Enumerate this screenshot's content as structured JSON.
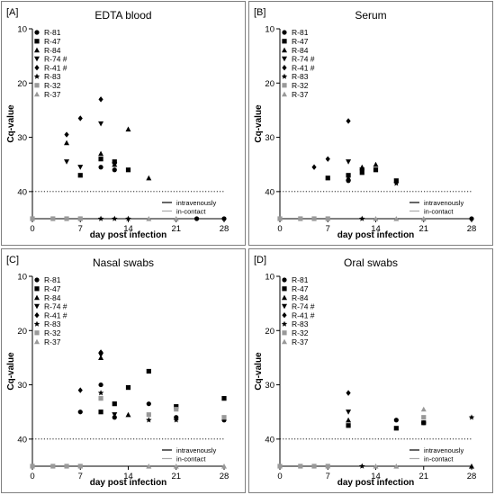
{
  "figure": {
    "x_ticks": [
      "0",
      "7",
      "14",
      "21",
      "28"
    ],
    "y_ticks": [
      "10",
      "20",
      "30",
      "40"
    ],
    "y_label": "Cq-value",
    "x_label": "day post infection",
    "threshold_ref": "dotted line at Cq 40",
    "legend_series": [
      {
        "name": "R-81",
        "marker": "circle",
        "color": "#000000"
      },
      {
        "name": "R-47",
        "marker": "square",
        "color": "#000000"
      },
      {
        "name": "R-84",
        "marker": "triangle-up",
        "color": "#000000"
      },
      {
        "name": "R-74 #",
        "marker": "triangle-down",
        "color": "#000000"
      },
      {
        "name": "R-41 #",
        "marker": "diamond",
        "color": "#000000"
      },
      {
        "name": "R-83",
        "marker": "star",
        "color": "#000000"
      },
      {
        "name": "R-32",
        "marker": "square",
        "color": "#999999"
      },
      {
        "name": "R-37",
        "marker": "triangle-up",
        "color": "#999999"
      }
    ],
    "route_legend": [
      {
        "label": "intravenously",
        "color": "#000000"
      },
      {
        "label": "in-contact",
        "color": "#aaaaaa"
      }
    ]
  },
  "chart_data": [
    {
      "type": "scatter",
      "panel_label": "[A]",
      "title": "EDTA blood",
      "xlabel": "day post infection",
      "ylabel": "Cq-value",
      "xlim": [
        0,
        28
      ],
      "ylim": [
        10,
        45
      ],
      "y_inverted": true,
      "threshold": 40,
      "negative_value": 45,
      "series": [
        {
          "name": "R-81",
          "points": [
            [
              10,
              35.5
            ],
            [
              12,
              36
            ],
            [
              24,
              45
            ],
            [
              28,
              45
            ]
          ]
        },
        {
          "name": "R-47",
          "points": [
            [
              7,
              37
            ],
            [
              10,
              34
            ],
            [
              12,
              34.5
            ],
            [
              14,
              36
            ]
          ]
        },
        {
          "name": "R-84",
          "points": [
            [
              5,
              31
            ],
            [
              10,
              33
            ],
            [
              12,
              35
            ],
            [
              14,
              28.5
            ],
            [
              17,
              37.5
            ]
          ]
        },
        {
          "name": "R-74 #",
          "points": [
            [
              5,
              34.5
            ],
            [
              7,
              35.5
            ],
            [
              10,
              27.5
            ],
            [
              12,
              35
            ]
          ]
        },
        {
          "name": "R-41 #",
          "points": [
            [
              5,
              29.5
            ],
            [
              7,
              26.5
            ],
            [
              10,
              23
            ]
          ]
        },
        {
          "name": "R-83",
          "points": [
            [
              10,
              45
            ],
            [
              12,
              45
            ],
            [
              14,
              45
            ]
          ]
        },
        {
          "name": "R-32",
          "points": [
            [
              0,
              45
            ],
            [
              3,
              45
            ],
            [
              5,
              45
            ],
            [
              7,
              45
            ]
          ]
        },
        {
          "name": "R-37",
          "points": [
            [
              17,
              45
            ],
            [
              21,
              45
            ]
          ]
        }
      ]
    },
    {
      "type": "scatter",
      "panel_label": "[B]",
      "title": "Serum",
      "xlabel": "day post infection",
      "ylabel": "Cq-value",
      "xlim": [
        0,
        28
      ],
      "ylim": [
        10,
        45
      ],
      "y_inverted": true,
      "threshold": 40,
      "negative_value": 45,
      "series": [
        {
          "name": "R-81",
          "points": [
            [
              10,
              38
            ],
            [
              12,
              36
            ],
            [
              28,
              45
            ]
          ]
        },
        {
          "name": "R-47",
          "points": [
            [
              7,
              37.5
            ],
            [
              10,
              37
            ],
            [
              12,
              36.5
            ],
            [
              14,
              36
            ],
            [
              17,
              38
            ]
          ]
        },
        {
          "name": "R-84",
          "points": [
            [
              10,
              37.5
            ],
            [
              12,
              35.5
            ],
            [
              14,
              35
            ]
          ]
        },
        {
          "name": "R-74 #",
          "points": [
            [
              10,
              34.5
            ],
            [
              12,
              36
            ]
          ]
        },
        {
          "name": "R-41 #",
          "points": [
            [
              5,
              35.5
            ],
            [
              7,
              34
            ],
            [
              10,
              27
            ]
          ]
        },
        {
          "name": "R-83",
          "points": [
            [
              17,
              38.5
            ],
            [
              12,
              45
            ]
          ]
        },
        {
          "name": "R-32",
          "points": [
            [
              0,
              45
            ],
            [
              3,
              45
            ],
            [
              5,
              45
            ],
            [
              7,
              45
            ]
          ]
        },
        {
          "name": "R-37",
          "points": [
            [
              14,
              45
            ],
            [
              17,
              45
            ],
            [
              21,
              45
            ]
          ]
        }
      ]
    },
    {
      "type": "scatter",
      "panel_label": "[C]",
      "title": "Nasal swabs",
      "xlabel": "day post infection",
      "ylabel": "Cq-value",
      "xlim": [
        0,
        28
      ],
      "ylim": [
        10,
        45
      ],
      "y_inverted": true,
      "threshold": 40,
      "negative_value": 45,
      "series": [
        {
          "name": "R-81",
          "points": [
            [
              7,
              35
            ],
            [
              10,
              30
            ],
            [
              12,
              36
            ],
            [
              17,
              33.5
            ],
            [
              21,
              36
            ],
            [
              28,
              36.5
            ]
          ]
        },
        {
          "name": "R-47",
          "points": [
            [
              10,
              35
            ],
            [
              12,
              33.5
            ],
            [
              14,
              30.5
            ],
            [
              17,
              27.5
            ],
            [
              21,
              34
            ],
            [
              28,
              32.5
            ]
          ]
        },
        {
          "name": "R-84",
          "points": [
            [
              10,
              25
            ],
            [
              14,
              35.5
            ]
          ]
        },
        {
          "name": "R-74 #",
          "points": [
            [
              10,
              24.5
            ],
            [
              12,
              35.5
            ]
          ]
        },
        {
          "name": "R-41 #",
          "points": [
            [
              7,
              31
            ],
            [
              10,
              24
            ]
          ]
        },
        {
          "name": "R-83",
          "points": [
            [
              10,
              31.5
            ],
            [
              17,
              36.5
            ],
            [
              21,
              36.5
            ]
          ]
        },
        {
          "name": "R-32",
          "points": [
            [
              10,
              32.5
            ],
            [
              17,
              35.5
            ],
            [
              21,
              34.5
            ],
            [
              28,
              36
            ],
            [
              0,
              45
            ],
            [
              3,
              45
            ],
            [
              5,
              45
            ],
            [
              7,
              45
            ]
          ]
        },
        {
          "name": "R-37",
          "points": [
            [
              17,
              45
            ],
            [
              21,
              45
            ],
            [
              28,
              45
            ]
          ]
        }
      ]
    },
    {
      "type": "scatter",
      "panel_label": "[D]",
      "title": "Oral swabs",
      "xlabel": "day post infection",
      "ylabel": "Cq-value",
      "xlim": [
        0,
        28
      ],
      "ylim": [
        10,
        45
      ],
      "y_inverted": true,
      "threshold": 40,
      "negative_value": 45,
      "series": [
        {
          "name": "R-81",
          "points": [
            [
              17,
              36.5
            ],
            [
              21,
              37
            ]
          ]
        },
        {
          "name": "R-47",
          "points": [
            [
              10,
              37.5
            ],
            [
              17,
              38
            ],
            [
              21,
              37
            ]
          ]
        },
        {
          "name": "R-84",
          "points": [
            [
              10,
              36.5
            ],
            [
              28,
              45
            ]
          ]
        },
        {
          "name": "R-74 #",
          "points": [
            [
              10,
              35
            ]
          ]
        },
        {
          "name": "R-41 #",
          "points": [
            [
              10,
              31.5
            ]
          ]
        },
        {
          "name": "R-83",
          "points": [
            [
              28,
              36
            ],
            [
              12,
              45
            ]
          ]
        },
        {
          "name": "R-32",
          "points": [
            [
              21,
              36
            ],
            [
              0,
              45
            ],
            [
              3,
              45
            ],
            [
              5,
              45
            ],
            [
              7,
              45
            ]
          ]
        },
        {
          "name": "R-37",
          "points": [
            [
              21,
              34.5
            ],
            [
              14,
              45
            ],
            [
              17,
              45
            ]
          ]
        }
      ]
    }
  ]
}
